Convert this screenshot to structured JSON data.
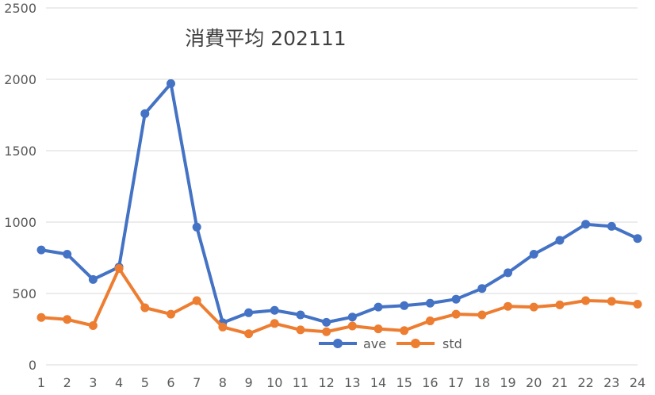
{
  "chart_data": {
    "type": "line",
    "title": "消費平均 202111",
    "xlabel": "",
    "ylabel": "",
    "x": [
      1,
      2,
      3,
      4,
      5,
      6,
      7,
      8,
      9,
      10,
      11,
      12,
      13,
      14,
      15,
      16,
      17,
      18,
      19,
      20,
      21,
      22,
      23,
      24
    ],
    "y_ticks": [
      0,
      500,
      1000,
      1500,
      2000,
      2500
    ],
    "ylim": [
      0,
      2500
    ],
    "grid": true,
    "legend_position": "bottom-center",
    "series": [
      {
        "name": "ave",
        "color": "#4472C4",
        "values": [
          805,
          775,
          598,
          685,
          1760,
          1970,
          965,
          295,
          365,
          382,
          350,
          298,
          335,
          405,
          415,
          432,
          460,
          535,
          645,
          775,
          872,
          985,
          970,
          885
        ]
      },
      {
        "name": "std",
        "color": "#ED7D31",
        "values": [
          332,
          318,
          275,
          675,
          400,
          355,
          450,
          265,
          218,
          290,
          245,
          232,
          272,
          252,
          240,
          308,
          355,
          350,
          410,
          405,
          420,
          450,
          445,
          425
        ]
      }
    ]
  }
}
